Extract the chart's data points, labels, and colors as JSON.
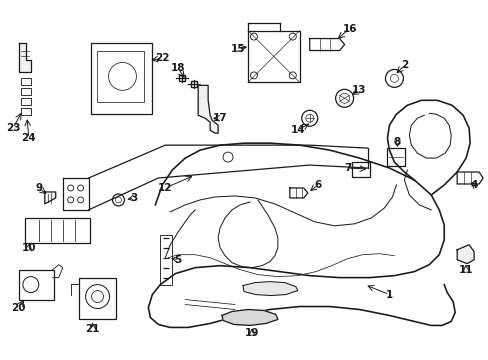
{
  "background_color": "#ffffff",
  "line_color": "#1a1a1a",
  "figsize": [
    4.89,
    3.6
  ],
  "dpi": 100,
  "label_fontsize": 7.5
}
